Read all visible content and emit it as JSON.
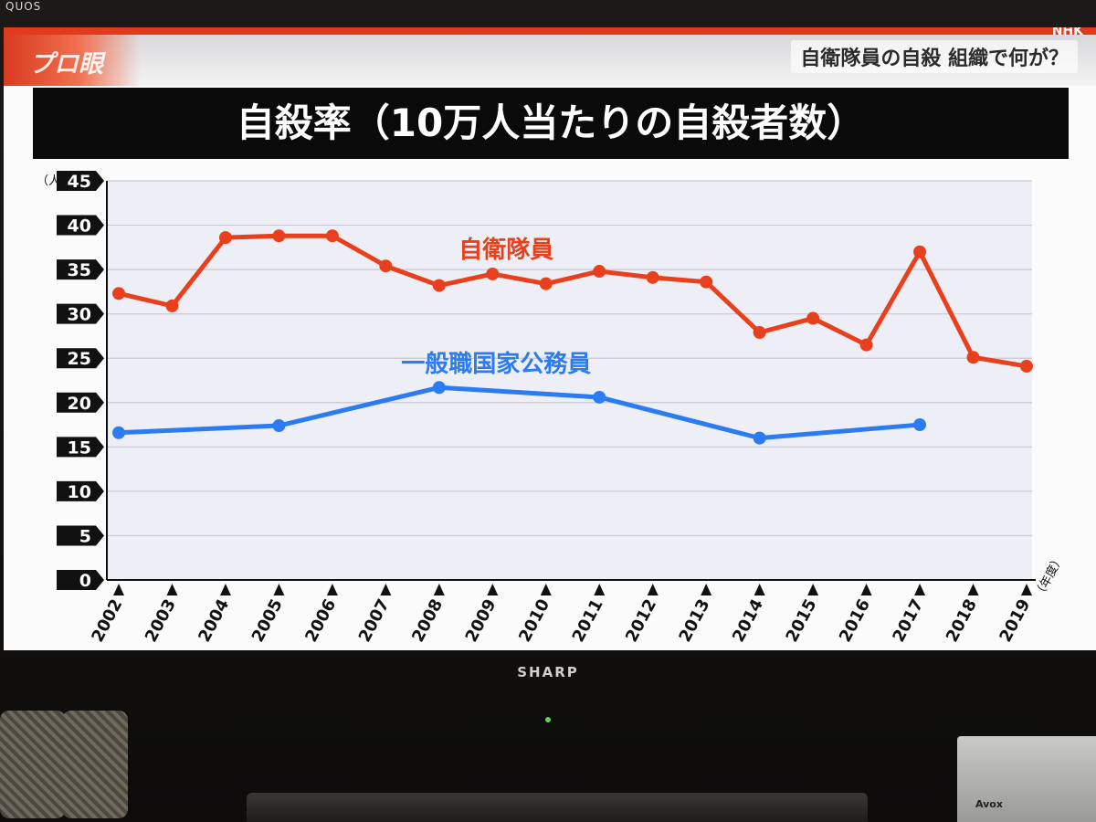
{
  "tv": {
    "brand_top": "QUOS",
    "brand_bottom": "SHARP",
    "side_device_label": "Avox"
  },
  "broadcast": {
    "network_logo": "NHK",
    "program_logo": "プロ眼",
    "subject_caption": "自衛隊員の自殺 組織で何が？"
  },
  "colors": {
    "sdf_series": "#e8401c",
    "civil_series": "#2b7bf2",
    "title_bg": "#0a0a0a",
    "accent_strip": "#e3391c"
  },
  "chart_data": {
    "type": "line",
    "title": "自殺率（10万人当たりの自殺者数）",
    "ylabel": "（人）",
    "xlabel": "（年度）",
    "ylim": [
      0,
      45
    ],
    "yticks": [
      0,
      5,
      10,
      15,
      20,
      25,
      30,
      35,
      40,
      45
    ],
    "grid": true,
    "legend": "inline labels",
    "x": [
      2002,
      2003,
      2004,
      2005,
      2006,
      2007,
      2008,
      2009,
      2010,
      2011,
      2012,
      2013,
      2014,
      2015,
      2016,
      2017,
      2018,
      2019
    ],
    "series": [
      {
        "name": "自衛隊員",
        "color": "#e8401c",
        "points": [
          {
            "x": 2002,
            "y": 32.3
          },
          {
            "x": 2003,
            "y": 30.9
          },
          {
            "x": 2004,
            "y": 38.6
          },
          {
            "x": 2005,
            "y": 38.8
          },
          {
            "x": 2006,
            "y": 38.8
          },
          {
            "x": 2007,
            "y": 35.4
          },
          {
            "x": 2008,
            "y": 33.2
          },
          {
            "x": 2009,
            "y": 34.5
          },
          {
            "x": 2010,
            "y": 33.4
          },
          {
            "x": 2011,
            "y": 34.8
          },
          {
            "x": 2012,
            "y": 34.1
          },
          {
            "x": 2013,
            "y": 33.6
          },
          {
            "x": 2014,
            "y": 27.9
          },
          {
            "x": 2015,
            "y": 29.5
          },
          {
            "x": 2016,
            "y": 26.5
          },
          {
            "x": 2017,
            "y": 37.0
          },
          {
            "x": 2018,
            "y": 25.1
          },
          {
            "x": 2019,
            "y": 24.1
          }
        ]
      },
      {
        "name": "一般職国家公務員",
        "color": "#2b7bf2",
        "points": [
          {
            "x": 2002,
            "y": 16.6
          },
          {
            "x": 2005,
            "y": 17.4
          },
          {
            "x": 2008,
            "y": 21.7
          },
          {
            "x": 2011,
            "y": 20.6
          },
          {
            "x": 2014,
            "y": 16.0
          },
          {
            "x": 2017,
            "y": 17.5
          }
        ]
      }
    ]
  }
}
